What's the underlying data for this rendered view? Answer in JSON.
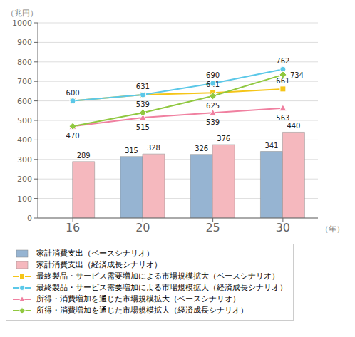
{
  "chart_data": {
    "type": "bar",
    "categories": [
      "16",
      "20",
      "25",
      "30"
    ],
    "xlabel": "（年）",
    "ylabel": "（兆円）",
    "ylim": [
      0,
      1000
    ],
    "yticks": [
      0,
      100,
      200,
      300,
      400,
      500,
      600,
      700,
      800,
      900,
      1000
    ],
    "grid": true,
    "legend": "bottom",
    "series": [
      {
        "name": "家計消費支出（ベースシナリオ）",
        "type": "bar",
        "color": "#96b4d2",
        "values": [
          null,
          315,
          326,
          341
        ],
        "data_labels": true
      },
      {
        "name": "家計消費支出（経済成長シナリオ）",
        "type": "bar",
        "color": "#f5b8be",
        "values": [
          289,
          328,
          376,
          440
        ],
        "data_labels": true
      },
      {
        "name": "最終製品・サービス需要増加による市場規模拡大（ベースシナリオ）",
        "type": "line",
        "color": "#f5c518",
        "marker": "square",
        "values": [
          600,
          631,
          641,
          661
        ],
        "data_labels": true
      },
      {
        "name": "最終製品・サービス需要増加による市場規模拡大（経済成長シナリオ）",
        "type": "line",
        "color": "#5bc8e8",
        "marker": "circle",
        "values": [
          600,
          631,
          690,
          762
        ],
        "data_labels": true,
        "value_labels": [
          null,
          null,
          "690",
          "762"
        ]
      },
      {
        "name": "所得・消費増加を通じた市場規模拡大（ベースシナリオ）",
        "type": "line",
        "color": "#f080a0",
        "marker": "triangle",
        "values": [
          470,
          515,
          539,
          563
        ],
        "data_labels": true
      },
      {
        "name": "所得・消費増加を通じた市場規模拡大（経済成長シナリオ）",
        "type": "line",
        "color": "#90c840",
        "marker": "diamond",
        "values": [
          470,
          539,
          625,
          734
        ],
        "data_labels": true,
        "value_labels": [
          null,
          "539",
          "625",
          "734"
        ]
      }
    ]
  }
}
